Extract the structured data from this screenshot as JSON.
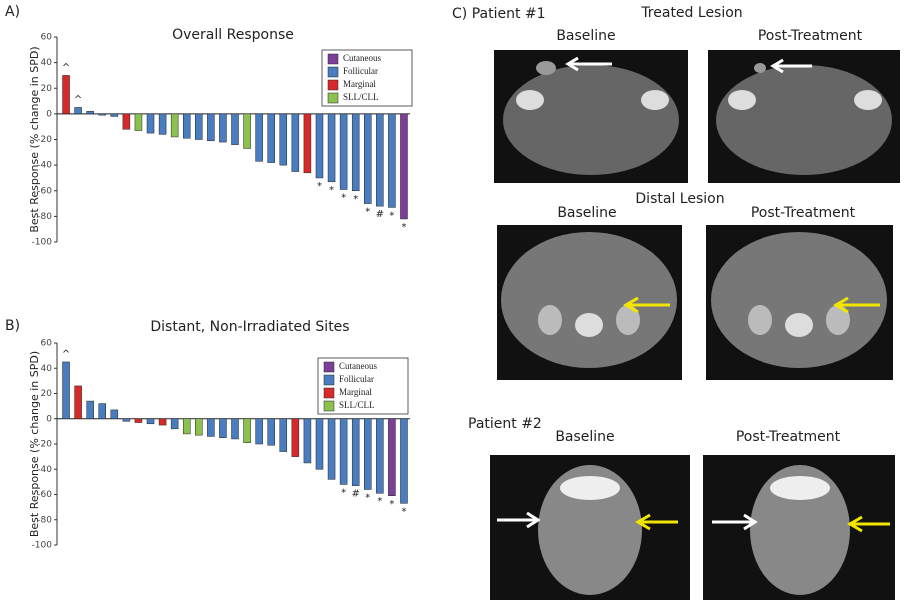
{
  "chart_data": [
    {
      "type": "bar",
      "label": "A)",
      "title": "Overall Response",
      "ylabel": "Best Response (% change in SPD)",
      "ylim": [
        -100,
        60
      ],
      "yticks": [
        60,
        40,
        20,
        0,
        -20,
        -40,
        -60,
        -80,
        -100
      ],
      "legend": [
        {
          "name": "Cutaneous",
          "color": "#7b3f99"
        },
        {
          "name": "Follicular",
          "color": "#4a7cc0"
        },
        {
          "name": "Marginal",
          "color": "#d62a2a"
        },
        {
          "name": "SLL/CLL",
          "color": "#8cc152"
        }
      ],
      "values": [
        30,
        5,
        2,
        -1,
        -2,
        -12,
        -13,
        -15,
        -16,
        -18,
        -19,
        -20,
        -21,
        -22,
        -24,
        -27,
        -37,
        -38,
        -40,
        -45,
        -46,
        -50,
        -53,
        -59,
        -60,
        -70,
        -72,
        -73,
        -82
      ],
      "colors": [
        "#d62a2a",
        "#4a7cc0",
        "#4a7cc0",
        "#4a7cc0",
        "#4a7cc0",
        "#d62a2a",
        "#8cc152",
        "#4a7cc0",
        "#4a7cc0",
        "#8cc152",
        "#4a7cc0",
        "#4a7cc0",
        "#4a7cc0",
        "#4a7cc0",
        "#4a7cc0",
        "#8cc152",
        "#4a7cc0",
        "#4a7cc0",
        "#4a7cc0",
        "#4a7cc0",
        "#d62a2a",
        "#4a7cc0",
        "#4a7cc0",
        "#4a7cc0",
        "#4a7cc0",
        "#4a7cc0",
        "#4a7cc0",
        "#4a7cc0",
        "#7b3f99"
      ],
      "bar_labels": [
        "^",
        "^",
        null,
        null,
        null,
        null,
        null,
        null,
        null,
        null,
        null,
        null,
        null,
        null,
        null,
        null,
        null,
        null,
        null,
        null,
        null,
        "*",
        "*",
        "*",
        "*",
        "*",
        "#",
        "*",
        "*"
      ]
    },
    {
      "type": "bar",
      "label": "B)",
      "title": "Distant, Non-Irradiated Sites",
      "ylabel": "Best Response (% change in SPD)",
      "ylim": [
        -100,
        60
      ],
      "yticks": [
        60,
        40,
        20,
        0,
        -20,
        -40,
        -60,
        -80,
        -100
      ],
      "legend": [
        {
          "name": "Cutaneous",
          "color": "#7b3f99"
        },
        {
          "name": "Follicular",
          "color": "#4a7cc0"
        },
        {
          "name": "Marginal",
          "color": "#d62a2a"
        },
        {
          "name": "SLL/CLL",
          "color": "#8cc152"
        }
      ],
      "values": [
        45,
        26,
        14,
        12,
        7,
        -2,
        -3,
        -4,
        -5,
        -8,
        -12,
        -13,
        -14,
        -15,
        -16,
        -19,
        -20,
        -21,
        -26,
        -30,
        -35,
        -40,
        -48,
        -52,
        -53,
        -56,
        -59,
        -61,
        -67
      ],
      "colors": [
        "#4a7cc0",
        "#d62a2a",
        "#4a7cc0",
        "#4a7cc0",
        "#4a7cc0",
        "#4a7cc0",
        "#d62a2a",
        "#4a7cc0",
        "#d62a2a",
        "#4a7cc0",
        "#8cc152",
        "#8cc152",
        "#4a7cc0",
        "#4a7cc0",
        "#4a7cc0",
        "#8cc152",
        "#4a7cc0",
        "#4a7cc0",
        "#4a7cc0",
        "#d62a2a",
        "#4a7cc0",
        "#4a7cc0",
        "#4a7cc0",
        "#4a7cc0",
        "#4a7cc0",
        "#4a7cc0",
        "#4a7cc0",
        "#7b3f99",
        "#4a7cc0"
      ],
      "bar_labels": [
        "^",
        null,
        null,
        null,
        null,
        null,
        null,
        null,
        null,
        null,
        null,
        null,
        null,
        null,
        null,
        null,
        null,
        null,
        null,
        null,
        null,
        null,
        null,
        "*",
        "#",
        "*",
        "*",
        "*",
        "*"
      ]
    }
  ],
  "panel_c": {
    "label": "C) Patient #1",
    "treated": "Treated Lesion",
    "distal": "Distal Lesion",
    "patient2": "Patient #2",
    "col_labels": [
      "Baseline",
      "Post-Treatment",
      "Baseline",
      "Post-Treatment",
      "Baseline",
      "Post-Treatment"
    ]
  }
}
